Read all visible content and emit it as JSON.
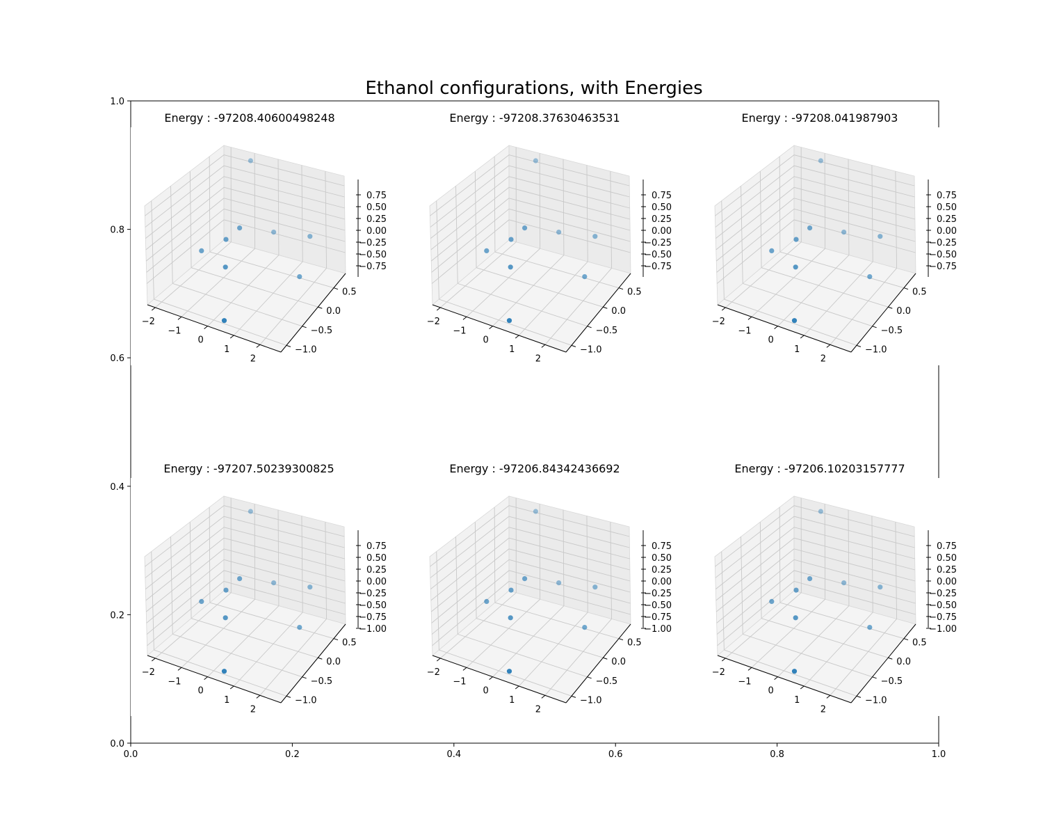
{
  "figure": {
    "title": "Ethanol configurations, with Energies"
  },
  "chart_data": {
    "type": "scatter",
    "title": "Ethanol configurations, with Energies",
    "background_axes": {
      "x_ticks": [
        "0.0",
        "0.2",
        "0.4",
        "0.6",
        "0.8",
        "1.0"
      ],
      "y_ticks": [
        "0.0",
        "0.2",
        "0.4",
        "0.6",
        "0.8",
        "1.0"
      ],
      "xlim": [
        0,
        1
      ],
      "ylim": [
        0,
        1
      ]
    },
    "subplots": [
      {
        "title": "Energy : -97208.40600498248",
        "xticks": [
          "−2",
          "−1",
          "0",
          "1",
          "2"
        ],
        "yticks": [
          "−1.0",
          "−0.5",
          "0.0",
          "0.5"
        ],
        "zticks": [
          "0.75",
          "0.50",
          "0.25",
          "0.00",
          "−0.25",
          "−0.50",
          "−0.75"
        ],
        "marker_color": "#1f77b4",
        "points": [
          {
            "x": -1.2,
            "y": 0.9,
            "z": 0.9
          },
          {
            "x": -1.95,
            "y": 0.0,
            "z": -0.55
          },
          {
            "x": -0.95,
            "y": -0.05,
            "z": -0.12
          },
          {
            "x": -0.55,
            "y": 0.05,
            "z": 0.12
          },
          {
            "x": -0.05,
            "y": 0.7,
            "z": -0.3
          },
          {
            "x": -0.55,
            "y": -0.4,
            "z": -0.4
          },
          {
            "x": 1.55,
            "y": 0.55,
            "z": -0.05
          },
          {
            "x": 1.65,
            "y": 0.1,
            "z": -0.55
          },
          {
            "x": 0.2,
            "y": -1.1,
            "z": -0.9
          }
        ]
      },
      {
        "title": "Energy : -97208.37630463531",
        "xticks": [
          "−2",
          "−1",
          "0",
          "1",
          "2"
        ],
        "yticks": [
          "−1.0",
          "−0.5",
          "0.0",
          "0.5"
        ],
        "zticks": [
          "0.75",
          "0.50",
          "0.25",
          "0.00",
          "−0.25",
          "−0.50",
          "−0.75"
        ],
        "marker_color": "#1f77b4",
        "points": [
          {
            "x": -1.2,
            "y": 0.9,
            "z": 0.9
          },
          {
            "x": -1.95,
            "y": 0.0,
            "z": -0.55
          },
          {
            "x": -0.95,
            "y": -0.05,
            "z": -0.12
          },
          {
            "x": -0.55,
            "y": 0.05,
            "z": 0.12
          },
          {
            "x": -0.05,
            "y": 0.7,
            "z": -0.3
          },
          {
            "x": -0.55,
            "y": -0.4,
            "z": -0.4
          },
          {
            "x": 1.55,
            "y": 0.55,
            "z": -0.05
          },
          {
            "x": 1.65,
            "y": 0.1,
            "z": -0.55
          },
          {
            "x": 0.2,
            "y": -1.1,
            "z": -0.9
          }
        ]
      },
      {
        "title": "Energy : -97208.041987903",
        "xticks": [
          "−2",
          "−1",
          "0",
          "1",
          "2"
        ],
        "yticks": [
          "−1.0",
          "−0.5",
          "0.0",
          "0.5"
        ],
        "zticks": [
          "0.75",
          "0.50",
          "0.25",
          "0.00",
          "−0.25",
          "−0.50",
          "−0.75"
        ],
        "marker_color": "#1f77b4",
        "points": [
          {
            "x": -1.2,
            "y": 0.9,
            "z": 0.9
          },
          {
            "x": -1.95,
            "y": 0.0,
            "z": -0.55
          },
          {
            "x": -0.95,
            "y": -0.05,
            "z": -0.12
          },
          {
            "x": -0.55,
            "y": 0.05,
            "z": 0.12
          },
          {
            "x": -0.05,
            "y": 0.7,
            "z": -0.3
          },
          {
            "x": -0.55,
            "y": -0.4,
            "z": -0.4
          },
          {
            "x": 1.55,
            "y": 0.55,
            "z": -0.05
          },
          {
            "x": 1.65,
            "y": 0.1,
            "z": -0.55
          },
          {
            "x": 0.2,
            "y": -1.1,
            "z": -0.9
          }
        ]
      },
      {
        "title": "Energy : -97207.50239300825",
        "xticks": [
          "−2",
          "−1",
          "0",
          "1",
          "2"
        ],
        "yticks": [
          "−1.0",
          "−0.5",
          "0.0",
          "0.5"
        ],
        "zticks": [
          "0.75",
          "0.50",
          "0.25",
          "0.00",
          "−0.25",
          "−0.50",
          "−0.75",
          "−1.00"
        ],
        "marker_color": "#1f77b4",
        "points": [
          {
            "x": -1.2,
            "y": 0.9,
            "z": 0.9
          },
          {
            "x": -1.95,
            "y": 0.0,
            "z": -0.55
          },
          {
            "x": -0.95,
            "y": -0.05,
            "z": -0.12
          },
          {
            "x": -0.55,
            "y": 0.05,
            "z": 0.12
          },
          {
            "x": -0.05,
            "y": 0.7,
            "z": -0.3
          },
          {
            "x": -0.55,
            "y": -0.4,
            "z": -0.4
          },
          {
            "x": 1.55,
            "y": 0.55,
            "z": -0.05
          },
          {
            "x": 1.65,
            "y": 0.1,
            "z": -0.55
          },
          {
            "x": 0.2,
            "y": -1.1,
            "z": -0.9
          }
        ]
      },
      {
        "title": "Energy : -97206.84342436692",
        "xticks": [
          "−2",
          "−1",
          "0",
          "1",
          "2"
        ],
        "yticks": [
          "−1.0",
          "−0.5",
          "0.0",
          "0.5"
        ],
        "zticks": [
          "0.75",
          "0.50",
          "0.25",
          "0.00",
          "−0.25",
          "−0.50",
          "−0.75",
          "−1.00"
        ],
        "marker_color": "#1f77b4",
        "points": [
          {
            "x": -1.2,
            "y": 0.9,
            "z": 0.9
          },
          {
            "x": -1.95,
            "y": 0.0,
            "z": -0.55
          },
          {
            "x": -0.95,
            "y": -0.05,
            "z": -0.12
          },
          {
            "x": -0.55,
            "y": 0.05,
            "z": 0.12
          },
          {
            "x": -0.05,
            "y": 0.7,
            "z": -0.3
          },
          {
            "x": -0.55,
            "y": -0.4,
            "z": -0.4
          },
          {
            "x": 1.55,
            "y": 0.55,
            "z": -0.05
          },
          {
            "x": 1.65,
            "y": 0.1,
            "z": -0.55
          },
          {
            "x": 0.2,
            "y": -1.1,
            "z": -0.9
          }
        ]
      },
      {
        "title": "Energy : -97206.10203157777",
        "xticks": [
          "−2",
          "−1",
          "0",
          "1",
          "2"
        ],
        "yticks": [
          "−1.0",
          "−0.5",
          "0.0",
          "0.5"
        ],
        "zticks": [
          "0.75",
          "0.50",
          "0.25",
          "0.00",
          "−0.25",
          "−0.50",
          "−0.75",
          "−1.00"
        ],
        "marker_color": "#1f77b4",
        "points": [
          {
            "x": -1.2,
            "y": 0.9,
            "z": 0.9
          },
          {
            "x": -1.95,
            "y": 0.0,
            "z": -0.55
          },
          {
            "x": -0.95,
            "y": -0.05,
            "z": -0.12
          },
          {
            "x": -0.55,
            "y": 0.05,
            "z": 0.12
          },
          {
            "x": -0.05,
            "y": 0.7,
            "z": -0.3
          },
          {
            "x": -0.55,
            "y": -0.4,
            "z": -0.4
          },
          {
            "x": 1.55,
            "y": 0.55,
            "z": -0.05
          },
          {
            "x": 1.65,
            "y": 0.1,
            "z": -0.55
          },
          {
            "x": 0.2,
            "y": -1.1,
            "z": -0.9
          }
        ]
      }
    ]
  }
}
